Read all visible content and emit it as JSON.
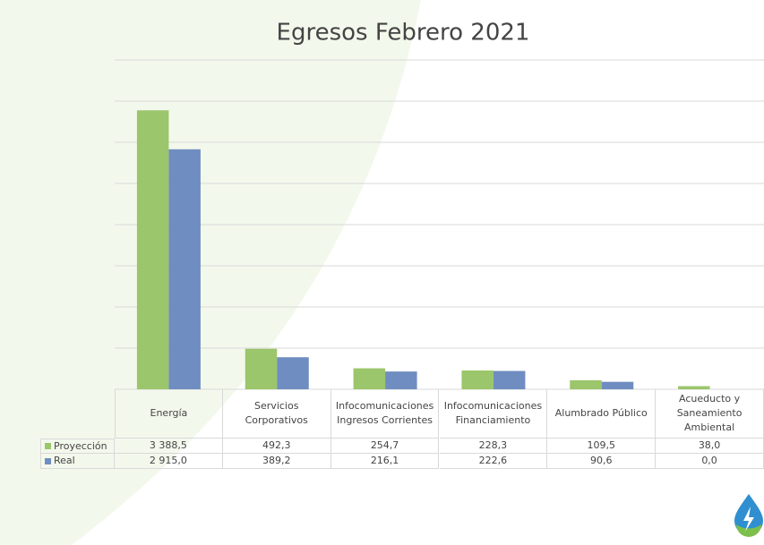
{
  "chart_data": {
    "type": "bar",
    "title": "Egresos Febrero 2021",
    "categories": [
      "Energía",
      "Servicios Corporativos",
      "Infocomunicaciones Ingresos Corrientes",
      "Infocomunicaciones Financiamiento",
      "Alumbrado Público",
      "Acueducto y Saneamiento Ambiental"
    ],
    "series": [
      {
        "name": "Proyección",
        "color": "#9bc66b",
        "values": [
          3388.5,
          492.3,
          254.7,
          228.3,
          109.5,
          38.0
        ],
        "value_labels": [
          "3 388,5",
          "492,3",
          "254,7",
          "228,3",
          "109,5",
          "38,0"
        ]
      },
      {
        "name": "Real",
        "color": "#6f8dc0",
        "values": [
          2915.0,
          389.2,
          216.1,
          222.6,
          90.6,
          0.0
        ],
        "value_labels": [
          "2 915,0",
          "389,2",
          "216,1",
          "222,6",
          "90,6",
          "0,0"
        ]
      }
    ],
    "ylim": [
      0,
      4000
    ],
    "yticks": [
      0,
      500,
      1000,
      1500,
      2000,
      2500,
      3000,
      3500,
      4000
    ],
    "grid": true
  }
}
